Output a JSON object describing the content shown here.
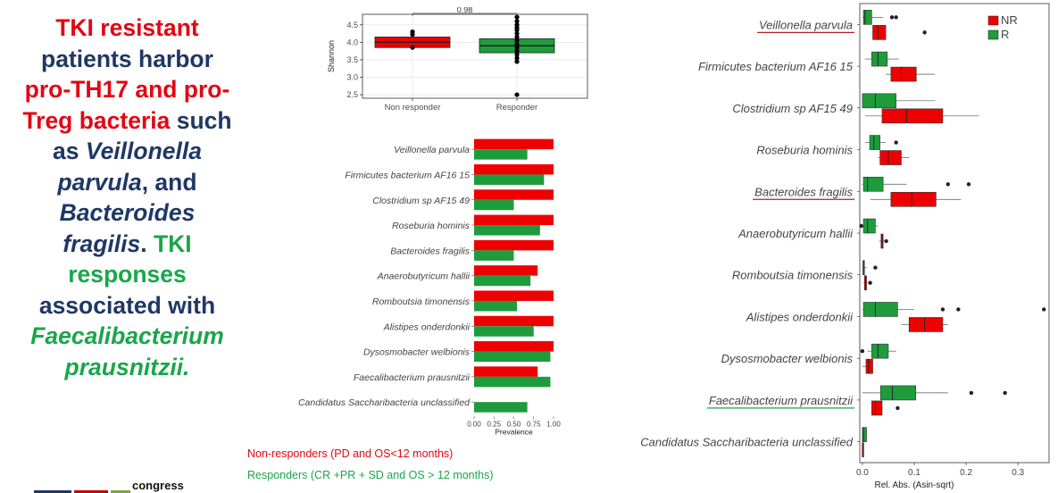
{
  "headline": {
    "l1": "TKI resistant",
    "l2": "patients harbor",
    "l3": "pro-TH17 and pro-",
    "l4a": "Treg bacteria",
    "l4b": " such",
    "l5a": "as ",
    "l5b": "Veillonella",
    "l6a": "parvula",
    "l6b": ", and",
    "l7": "Bacteroides",
    "l8a": "fragilis",
    "l8b": ". ",
    "l8c": "TKI",
    "l9": "responses",
    "l10": "associated with",
    "l11": "Faecalibacterium",
    "l12": "prausnitzii."
  },
  "congress_label": "congress",
  "legend": {
    "nr": "Non-responders (PD and OS<12 months)",
    "r": "Responders (CR +PR + SD and OS > 12 months)"
  },
  "colors": {
    "nr": "#ee0000",
    "r": "#1e9c3c",
    "headline_red": "#e30613",
    "headline_blue": "#1f3864",
    "headline_green": "#1aa64a"
  },
  "chart_data": [
    {
      "type": "boxplot",
      "ylabel": "Shannon",
      "xlabel": "",
      "categories": [
        "Non responder",
        "Responder"
      ],
      "yticks": [
        2.5,
        3.0,
        3.5,
        4.0,
        4.5
      ],
      "ylim": [
        2.4,
        4.8
      ],
      "significance": {
        "label": "0.98",
        "between": [
          "Non responder",
          "Responder"
        ]
      },
      "boxes": [
        {
          "group": "Non responder",
          "q1": 3.85,
          "median": 4.0,
          "q3": 4.15,
          "whisker_low": 3.85,
          "whisker_high": 4.15,
          "points": [
            4.3,
            4.22,
            3.85
          ]
        },
        {
          "group": "Responder",
          "q1": 3.7,
          "median": 3.9,
          "q3": 4.1,
          "whisker_low": 3.45,
          "whisker_high": 4.5,
          "points": [
            4.72,
            4.6,
            4.5,
            4.42,
            4.35,
            4.25,
            4.15,
            4.05,
            3.95,
            3.85,
            3.75,
            3.65,
            3.55,
            3.45,
            2.5
          ]
        }
      ],
      "grid": true
    },
    {
      "type": "bar",
      "orientation": "horizontal",
      "xlabel": "Prevalence",
      "xticks": [
        0.0,
        0.25,
        0.5,
        0.75,
        1.0
      ],
      "tick_labels": [
        "0.00",
        "0.25",
        "0.50",
        "0.75",
        "1.00"
      ],
      "xlim": [
        0,
        1
      ],
      "categories": [
        "Veillonella parvula",
        "Firmicutes bacterium AF16 15",
        "Clostridium sp AF15 49",
        "Roseburia hominis",
        "Bacteroides fragilis",
        "Anaerobutyricum hallii",
        "Romboutsia timonensis",
        "Alistipes onderdonkii",
        "Dysosmobacter welbionis",
        "Faecalibacterium prausnitzii",
        "Candidatus Saccharibacteria unclassified"
      ],
      "series": [
        {
          "values": [
            1.0,
            1.0,
            1.0,
            1.0,
            1.0,
            0.8,
            1.0,
            1.0,
            1.0,
            0.8,
            0.0
          ]
        },
        {
          "values": [
            0.67,
            0.88,
            0.5,
            0.83,
            0.5,
            0.71,
            0.54,
            0.75,
            0.96,
            0.96,
            0.67
          ]
        }
      ],
      "grid": false
    },
    {
      "type": "boxplot",
      "orientation": "horizontal",
      "xlabel": "Rel. Abs. (Asin-sqrt)",
      "xticks": [
        0.0,
        0.1,
        0.2,
        0.3
      ],
      "tick_labels": [
        "0.0",
        "0.1",
        "0.2",
        "0.3"
      ],
      "xlim": [
        -0.005,
        0.36
      ],
      "legend": {
        "position": "top-right",
        "entries": [
          "NR",
          "R"
        ]
      },
      "categories": [
        "Veillonella parvula",
        "Firmicutes bacterium AF16 15",
        "Clostridium sp AF15 49",
        "Roseburia hominis",
        "Bacteroides fragilis",
        "Anaerobutyricum hallii",
        "Romboutsia timonensis",
        "Alistipes onderdonkii",
        "Dysosmobacter welbionis",
        "Faecalibacterium prausnitzii",
        "Candidatus Saccharibacteria unclassified"
      ],
      "underlined": [
        {
          "category": "Veillonella parvula",
          "color": "#b22222"
        },
        {
          "category": "Bacteroides fragilis",
          "color": "#b22222"
        },
        {
          "category": "Faecalibacterium prausnitzii",
          "color": "#1aa64a"
        }
      ],
      "boxes": [
        {
          "category": "Veillonella parvula",
          "R": {
            "wl": 0.0,
            "q1": 0.002,
            "med": 0.005,
            "q3": 0.018,
            "wh": 0.04,
            "out": [
              0.057,
              0.065
            ]
          },
          "NR": {
            "wl": 0.02,
            "q1": 0.02,
            "med": 0.03,
            "q3": 0.045,
            "wh": 0.045,
            "out": [
              0.12
            ]
          }
        },
        {
          "category": "Firmicutes bacterium AF16 15",
          "R": {
            "wl": 0.005,
            "q1": 0.018,
            "med": 0.03,
            "q3": 0.048,
            "wh": 0.07,
            "out": []
          },
          "NR": {
            "wl": 0.045,
            "q1": 0.055,
            "med": 0.075,
            "q3": 0.104,
            "wh": 0.14,
            "out": []
          }
        },
        {
          "category": "Clostridium sp AF15 49",
          "R": {
            "wl": 0.0,
            "q1": 0.0,
            "med": 0.025,
            "q3": 0.065,
            "wh": 0.14,
            "out": []
          },
          "NR": {
            "wl": 0.005,
            "q1": 0.038,
            "med": 0.085,
            "q3": 0.155,
            "wh": 0.225,
            "out": []
          }
        },
        {
          "category": "Roseburia hominis",
          "R": {
            "wl": 0.005,
            "q1": 0.014,
            "med": 0.022,
            "q3": 0.034,
            "wh": 0.045,
            "out": [
              0.065
            ]
          },
          "NR": {
            "wl": 0.03,
            "q1": 0.034,
            "med": 0.05,
            "q3": 0.075,
            "wh": 0.09,
            "out": []
          }
        },
        {
          "category": "Bacteroides fragilis",
          "R": {
            "wl": 0.0,
            "q1": 0.002,
            "med": 0.01,
            "q3": 0.04,
            "wh": 0.085,
            "out": [
              0.165,
              0.205
            ]
          },
          "NR": {
            "wl": 0.015,
            "q1": 0.055,
            "med": 0.095,
            "q3": 0.142,
            "wh": 0.19,
            "out": []
          }
        },
        {
          "category": "Anaerobutyricum hallii",
          "R": {
            "wl": 0.0,
            "q1": 0.002,
            "med": 0.01,
            "q3": 0.025,
            "wh": 0.03,
            "out": [
              -0.002
            ]
          },
          "NR": {
            "wl": 0.032,
            "q1": 0.036,
            "med": 0.038,
            "q3": 0.04,
            "wh": 0.042,
            "out": [
              0.046
            ]
          }
        },
        {
          "category": "Romboutsia timonensis",
          "R": {
            "wl": 0.0,
            "q1": 0.001,
            "med": 0.002,
            "q3": 0.004,
            "wh": 0.008,
            "out": [
              0.025
            ]
          },
          "NR": {
            "wl": 0.002,
            "q1": 0.004,
            "med": 0.006,
            "q3": 0.008,
            "wh": 0.01,
            "out": [
              0.015
            ]
          }
        },
        {
          "category": "Alistipes onderdonkii",
          "R": {
            "wl": 0.0,
            "q1": 0.002,
            "med": 0.025,
            "q3": 0.068,
            "wh": 0.1,
            "out": [
              0.155,
              0.185,
              0.35
            ]
          },
          "NR": {
            "wl": 0.075,
            "q1": 0.09,
            "med": 0.12,
            "q3": 0.155,
            "wh": 0.165,
            "out": []
          }
        },
        {
          "category": "Dysosmobacter welbionis",
          "R": {
            "wl": 0.01,
            "q1": 0.018,
            "med": 0.03,
            "q3": 0.05,
            "wh": 0.065,
            "out": [
              0.0
            ]
          },
          "NR": {
            "wl": 0.0,
            "q1": 0.007,
            "med": 0.012,
            "q3": 0.02,
            "wh": 0.02,
            "out": []
          }
        },
        {
          "category": "Faecalibacterium prausnitzii",
          "R": {
            "wl": 0.0,
            "q1": 0.035,
            "med": 0.058,
            "q3": 0.103,
            "wh": 0.165,
            "out": [
              0.21,
              0.275
            ]
          },
          "NR": {
            "wl": 0.018,
            "q1": 0.018,
            "med": 0.025,
            "q3": 0.038,
            "wh": 0.04,
            "out": [
              0.068
            ]
          }
        },
        {
          "category": "Candidatus Saccharibacteria unclassified",
          "R": {
            "wl": 0.0,
            "q1": 0.0,
            "med": 0.002,
            "q3": 0.008,
            "wh": 0.008,
            "out": []
          },
          "NR": {
            "wl": 0.0,
            "q1": 0.0,
            "med": 0.0,
            "q3": 0.0,
            "wh": 0.0,
            "out": []
          }
        }
      ]
    }
  ]
}
